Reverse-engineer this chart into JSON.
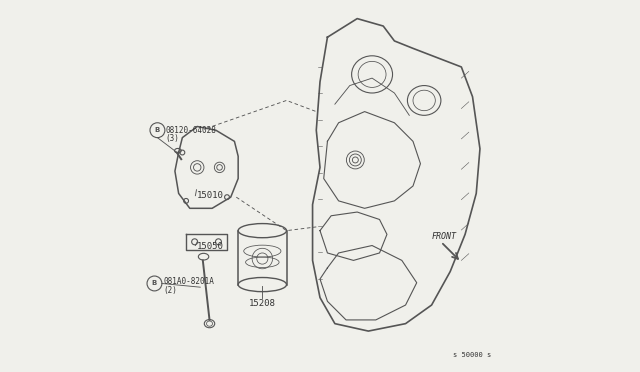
{
  "background_color": "#f0f0eb",
  "line_color": "#555555",
  "text_color": "#333333",
  "fig_width": 6.4,
  "fig_height": 3.72,
  "dpi": 100,
  "labels": {
    "bolt1_circle": "B",
    "bolt1_text": "08120-64028\n(3)",
    "part15010": "15010",
    "part15050": "15050",
    "bolt2_circle": "B",
    "bolt2_text": "081A0-8201A\n(2)",
    "part15208": "15208",
    "front": "FRONT",
    "ref": "s 50000 s"
  }
}
